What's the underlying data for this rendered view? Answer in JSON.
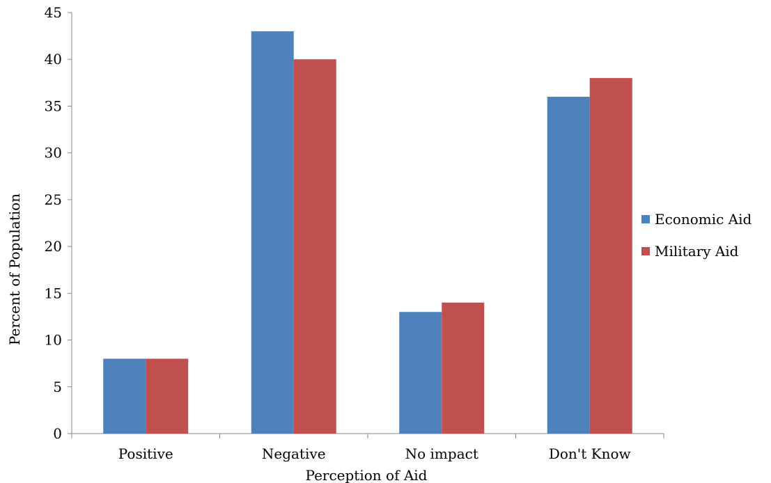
{
  "chart_data": {
    "type": "bar",
    "title": "",
    "xlabel": "Perception of Aid",
    "ylabel": "Percent of Population",
    "categories": [
      "Positive",
      "Negative",
      "No impact",
      "Don't Know"
    ],
    "series": [
      {
        "name": "Economic Aid",
        "color": "#4F81BD",
        "values": [
          8,
          43,
          13,
          36
        ]
      },
      {
        "name": "Military Aid",
        "color": "#C0504D",
        "values": [
          8,
          40,
          14,
          38
        ]
      }
    ],
    "ylim": [
      0,
      45
    ],
    "yticks": [
      0,
      5,
      10,
      15,
      20,
      25,
      30,
      35,
      40,
      45
    ],
    "grid": false,
    "legend": "right"
  }
}
